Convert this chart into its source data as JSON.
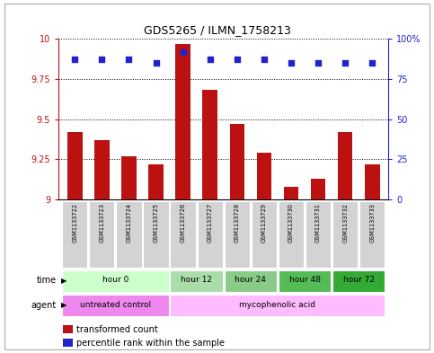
{
  "title": "GDS5265 / ILMN_1758213",
  "samples": [
    "GSM1133722",
    "GSM1133723",
    "GSM1133724",
    "GSM1133725",
    "GSM1133726",
    "GSM1133727",
    "GSM1133728",
    "GSM1133729",
    "GSM1133730",
    "GSM1133731",
    "GSM1133732",
    "GSM1133733"
  ],
  "bar_values": [
    9.42,
    9.37,
    9.27,
    9.22,
    9.97,
    9.68,
    9.47,
    9.29,
    9.08,
    9.13,
    9.42,
    9.22
  ],
  "dot_values": [
    87,
    87,
    87,
    85,
    92,
    87,
    87,
    87,
    85,
    85,
    85,
    85
  ],
  "bar_color": "#bb1111",
  "dot_color": "#2222cc",
  "ylim_left": [
    9.0,
    10.0
  ],
  "ylim_right": [
    0,
    100
  ],
  "yticks_left": [
    9.0,
    9.25,
    9.5,
    9.75,
    10.0
  ],
  "yticks_right": [
    0,
    25,
    50,
    75,
    100
  ],
  "ytick_labels_left": [
    "9",
    "9.25",
    "9.5",
    "9.75",
    "10"
  ],
  "ytick_labels_right": [
    "0",
    "25",
    "50",
    "75",
    "100%"
  ],
  "background_color": "#ffffff",
  "time_groups": [
    {
      "label": "hour 0",
      "start": 0,
      "end": 3,
      "color": "#ccffcc"
    },
    {
      "label": "hour 12",
      "start": 4,
      "end": 5,
      "color": "#aaddaa"
    },
    {
      "label": "hour 24",
      "start": 6,
      "end": 7,
      "color": "#88cc88"
    },
    {
      "label": "hour 48",
      "start": 8,
      "end": 9,
      "color": "#55bb55"
    },
    {
      "label": "hour 72",
      "start": 10,
      "end": 11,
      "color": "#33aa33"
    }
  ],
  "agent_groups": [
    {
      "label": "untreated control",
      "start": 0,
      "end": 3,
      "color": "#ee88ee"
    },
    {
      "label": "mycophenolic acid",
      "start": 4,
      "end": 11,
      "color": "#ffbbff"
    }
  ],
  "time_label": "time",
  "agent_label": "agent",
  "legend_bar": "transformed count",
  "legend_dot": "percentile rank within the sample",
  "bar_width": 0.55
}
